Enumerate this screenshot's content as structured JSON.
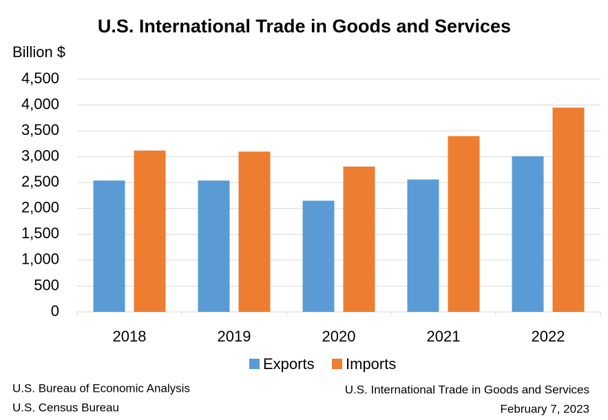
{
  "chart_data": {
    "type": "bar",
    "title": "U.S. International Trade in Goods and Services",
    "y_axis_label": "Billion $",
    "categories": [
      "2018",
      "2019",
      "2020",
      "2021",
      "2022"
    ],
    "series": [
      {
        "name": "Exports",
        "color": "#5b9bd5",
        "values": [
          2540,
          2540,
          2150,
          2560,
          3010
        ]
      },
      {
        "name": "Imports",
        "color": "#ed7d31",
        "values": [
          3120,
          3100,
          2810,
          3400,
          3950
        ]
      }
    ],
    "ylim": [
      0,
      4500
    ],
    "yticks": [
      0,
      500,
      {
        "value": 1000,
        "label": "1,000"
      },
      {
        "value": 1500,
        "label": "1,500"
      },
      {
        "value": 2000,
        "label": "2,000"
      },
      {
        "value": 2500,
        "label": "2,500"
      },
      {
        "value": 3000,
        "label": "3,000"
      },
      {
        "value": 3500,
        "label": "3,500"
      },
      {
        "value": 4000,
        "label": "4,000"
      },
      {
        "value": 4500,
        "label": "4,500"
      }
    ],
    "grid": true,
    "legend": "bottom",
    "source_left": [
      "U.S. Bureau of Economic Analysis",
      "U.S. Census Bureau"
    ],
    "source_right": [
      "U.S. International Trade in Goods and Services",
      "February 7, 2023"
    ]
  }
}
